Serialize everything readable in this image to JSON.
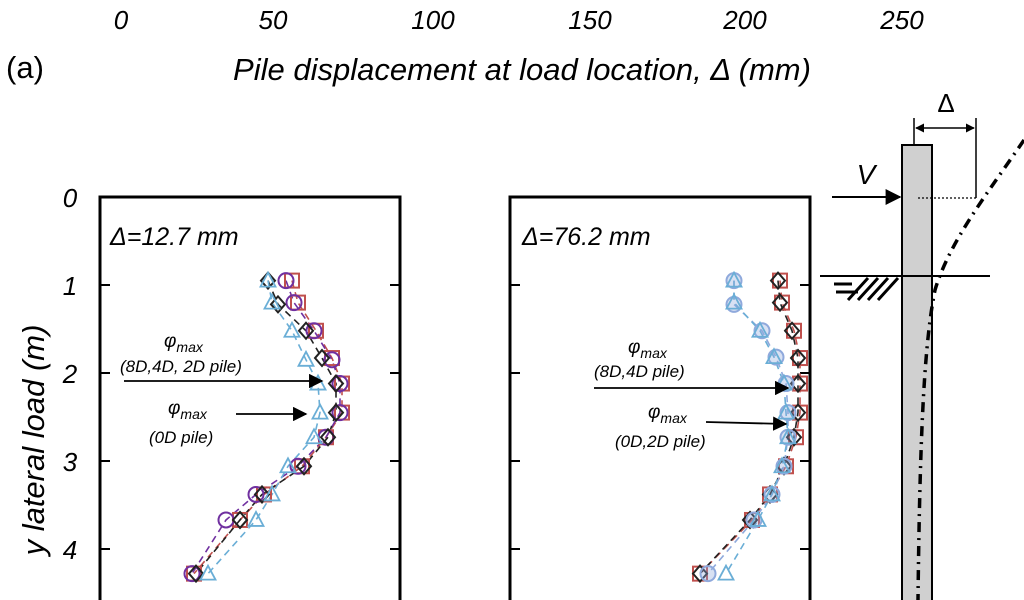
{
  "top_axis": {
    "ticks": [
      "0",
      "50",
      "100",
      "150",
      "200",
      "250"
    ],
    "label": "Pile displacement at load location, Δ (mm)",
    "panel_label": "(a)"
  },
  "y_axis": {
    "label": "y lateral load (m)",
    "ticks": [
      "0",
      "1",
      "2",
      "3",
      "4"
    ]
  },
  "colors": {
    "square": "#c0504d",
    "circle": "#7030a0",
    "diamond": "#222222",
    "triangle": "#6aaed6",
    "circle_filled": "#8fa9dc"
  },
  "chart_data": [
    {
      "type": "scatter",
      "panel": "left",
      "annotation_title": "Δ=12.7 mm",
      "ylim": [
        0,
        4.6
      ],
      "y_inverted": true,
      "annotations": [
        {
          "symbol": "φ",
          "sub": "max",
          "text": "(8D,4D, 2D pile)",
          "arrow_to_depth": 2.1
        },
        {
          "symbol": "φ",
          "sub": "max",
          "text": "(0D pile)",
          "arrow_to_depth": 2.5
        }
      ],
      "series": [
        {
          "marker": "square",
          "points": [
            [
              0.96,
              0.95
            ],
            [
              0.99,
              1.2
            ],
            [
              1.08,
              1.52
            ],
            [
              1.16,
              1.83
            ],
            [
              1.21,
              2.12
            ],
            [
              1.21,
              2.45
            ],
            [
              1.13,
              2.73
            ],
            [
              1.01,
              3.06
            ],
            [
              0.82,
              3.38
            ],
            [
              0.7,
              3.67
            ],
            [
              0.47,
              4.28
            ]
          ]
        },
        {
          "marker": "circle",
          "points": [
            [
              0.93,
              0.95
            ],
            [
              0.97,
              1.2
            ],
            [
              1.07,
              1.52
            ],
            [
              1.16,
              1.85
            ],
            [
              1.2,
              2.12
            ],
            [
              1.2,
              2.45
            ],
            [
              1.13,
              2.73
            ],
            [
              0.99,
              3.06
            ],
            [
              0.78,
              3.38
            ],
            [
              0.63,
              3.67
            ],
            [
              0.46,
              4.28
            ]
          ]
        },
        {
          "marker": "diamond",
          "points": [
            [
              0.84,
              0.95
            ],
            [
              0.89,
              1.22
            ],
            [
              1.03,
              1.52
            ],
            [
              1.11,
              1.83
            ],
            [
              1.18,
              2.12
            ],
            [
              1.18,
              2.45
            ],
            [
              1.14,
              2.73
            ],
            [
              1.02,
              3.06
            ],
            [
              0.81,
              3.38
            ],
            [
              0.7,
              3.67
            ],
            [
              0.48,
              4.28
            ]
          ]
        },
        {
          "marker": "triangle",
          "points": [
            [
              0.84,
              0.95
            ],
            [
              0.86,
              1.2
            ],
            [
              0.96,
              1.52
            ],
            [
              1.03,
              1.85
            ],
            [
              1.09,
              2.12
            ],
            [
              1.1,
              2.45
            ],
            [
              1.07,
              2.73
            ],
            [
              0.94,
              3.06
            ],
            [
              0.86,
              3.38
            ],
            [
              0.78,
              3.67
            ],
            [
              0.54,
              4.28
            ]
          ]
        }
      ]
    },
    {
      "type": "scatter",
      "panel": "right",
      "annotation_title": "Δ=76.2 mm",
      "ylim": [
        0,
        4.6
      ],
      "y_inverted": true,
      "annotations": [
        {
          "symbol": "φ",
          "sub": "max",
          "text": "(8D,4D pile)",
          "arrow_to_depth": 2.15
        },
        {
          "symbol": "φ",
          "sub": "max",
          "text": "(0D,2D pile)",
          "arrow_to_depth": 2.55
        }
      ],
      "series": [
        {
          "marker": "square",
          "points": [
            [
              1.35,
              0.95
            ],
            [
              1.36,
              1.2
            ],
            [
              1.42,
              1.52
            ],
            [
              1.45,
              1.83
            ],
            [
              1.45,
              2.12
            ],
            [
              1.45,
              2.45
            ],
            [
              1.43,
              2.73
            ],
            [
              1.38,
              3.06
            ],
            [
              1.3,
              3.38
            ],
            [
              1.21,
              3.67
            ],
            [
              0.95,
              4.28
            ]
          ]
        },
        {
          "marker": "diamond",
          "points": [
            [
              1.34,
              0.95
            ],
            [
              1.35,
              1.2
            ],
            [
              1.41,
              1.52
            ],
            [
              1.44,
              1.83
            ],
            [
              1.44,
              2.12
            ],
            [
              1.44,
              2.45
            ],
            [
              1.42,
              2.73
            ],
            [
              1.37,
              3.06
            ],
            [
              1.3,
              3.38
            ],
            [
              1.2,
              3.67
            ],
            [
              0.95,
              4.28
            ]
          ]
        },
        {
          "marker": "circle",
          "points": [
            [
              1.12,
              0.95
            ],
            [
              1.12,
              1.22
            ],
            [
              1.26,
              1.52
            ],
            [
              1.33,
              1.82
            ],
            [
              1.38,
              2.12
            ],
            [
              1.39,
              2.45
            ],
            [
              1.39,
              2.73
            ],
            [
              1.37,
              3.06
            ],
            [
              1.31,
              3.38
            ],
            [
              1.22,
              3.67
            ],
            [
              0.99,
              4.28
            ]
          ]
        },
        {
          "marker": "triangle",
          "points": [
            [
              1.12,
              0.95
            ],
            [
              1.12,
              1.2
            ],
            [
              1.25,
              1.52
            ],
            [
              1.32,
              1.82
            ],
            [
              1.37,
              2.12
            ],
            [
              1.38,
              2.45
            ],
            [
              1.39,
              2.73
            ],
            [
              1.36,
              3.06
            ],
            [
              1.31,
              3.38
            ],
            [
              1.24,
              3.67
            ],
            [
              1.08,
              4.28
            ]
          ]
        }
      ]
    }
  ],
  "schematic": {
    "load_label": "V",
    "disp_label": "Δ"
  }
}
